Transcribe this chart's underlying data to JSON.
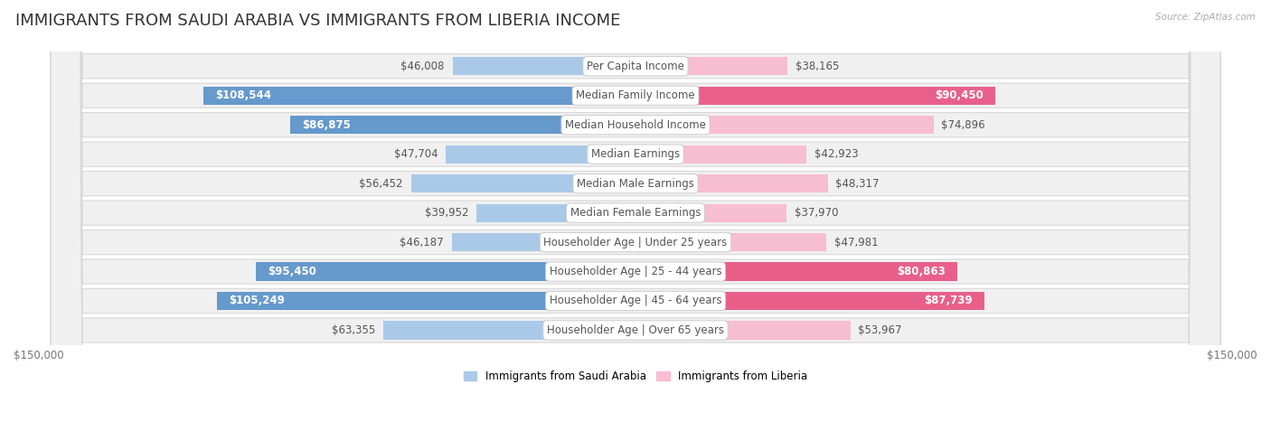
{
  "title": "IMMIGRANTS FROM SAUDI ARABIA VS IMMIGRANTS FROM LIBERIA INCOME",
  "source": "Source: ZipAtlas.com",
  "categories": [
    "Per Capita Income",
    "Median Family Income",
    "Median Household Income",
    "Median Earnings",
    "Median Male Earnings",
    "Median Female Earnings",
    "Householder Age | Under 25 years",
    "Householder Age | 25 - 44 years",
    "Householder Age | 45 - 64 years",
    "Householder Age | Over 65 years"
  ],
  "saudi_values": [
    46008,
    108544,
    86875,
    47704,
    56452,
    39952,
    46187,
    95450,
    105249,
    63355
  ],
  "liberia_values": [
    38165,
    90450,
    74896,
    42923,
    48317,
    37970,
    47981,
    80863,
    87739,
    53967
  ],
  "saudi_color_light": "#aac9e8",
  "saudi_color_dark": "#6699cc",
  "liberia_color_light": "#f7bdd0",
  "liberia_color_dark": "#e8608a",
  "saudi_label": "Immigrants from Saudi Arabia",
  "liberia_label": "Immigrants from Liberia",
  "xlim": 150000,
  "bg_color": "#ffffff",
  "row_bg": "#f0f0f0",
  "row_border": "#d8d8d8",
  "title_fontsize": 13,
  "label_fontsize": 8.5,
  "tick_fontsize": 8.5,
  "saudi_threshold": 80000,
  "liberia_threshold": 75000
}
